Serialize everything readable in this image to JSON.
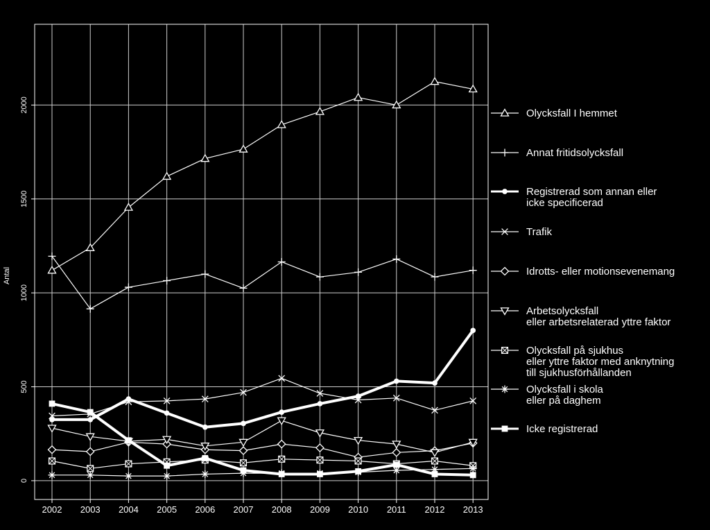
{
  "chart_data": {
    "type": "line",
    "title": "",
    "xlabel": "",
    "ylabel": "Antal",
    "x": [
      "2002",
      "2003",
      "2004",
      "2005",
      "2006",
      "2007",
      "2008",
      "2009",
      "2010",
      "2011",
      "2012",
      "2013"
    ],
    "ylim": [
      -100,
      2430
    ],
    "yticks": [
      0,
      500,
      1000,
      1500,
      2000
    ],
    "ytick_labels": [
      "0",
      "500",
      "1000",
      "1500",
      "2000"
    ],
    "grid": true,
    "legend_position": "right",
    "series": [
      {
        "name": "Olycksfall I hemmet",
        "marker": "triangle-up",
        "bold": false,
        "values": [
          1120,
          1240,
          1455,
          1620,
          1715,
          1765,
          1895,
          1965,
          2040,
          2000,
          2125,
          2085
        ]
      },
      {
        "name": "Annat fritidsolycksfall",
        "marker": "plus",
        "bold": false,
        "values": [
          1195,
          915,
          1030,
          1065,
          1100,
          1025,
          1165,
          1085,
          1110,
          1180,
          1085,
          1120
        ]
      },
      {
        "name": "Registrerad som annan eller\nicke specificerad",
        "marker": "dot",
        "bold": true,
        "values": [
          325,
          325,
          435,
          360,
          285,
          305,
          365,
          410,
          450,
          530,
          520,
          800
        ]
      },
      {
        "name": "Trafik",
        "marker": "x",
        "bold": false,
        "values": [
          345,
          355,
          420,
          425,
          435,
          470,
          545,
          465,
          430,
          440,
          375,
          425
        ]
      },
      {
        "name": "Idrotts- eller motionsevenemang",
        "marker": "diamond",
        "bold": false,
        "values": [
          165,
          155,
          205,
          195,
          165,
          160,
          195,
          175,
          125,
          150,
          160,
          200
        ]
      },
      {
        "name": "Arbetsolycksfall\neller arbetsrelaterad yttre faktor",
        "marker": "triangle-down",
        "bold": false,
        "values": [
          280,
          235,
          210,
          220,
          185,
          205,
          320,
          255,
          215,
          195,
          150,
          205
        ]
      },
      {
        "name": "Olycksfall på sjukhus\neller yttre faktor med anknytning\ntill sjukhusförhållanden",
        "marker": "boxed-square",
        "bold": false,
        "values": [
          105,
          65,
          90,
          100,
          110,
          95,
          115,
          110,
          105,
          90,
          105,
          80
        ]
      },
      {
        "name": "Olycksfall i skola\neller på daghem",
        "marker": "asterisk",
        "bold": false,
        "values": [
          30,
          30,
          25,
          25,
          35,
          40,
          40,
          40,
          45,
          55,
          60,
          65
        ]
      },
      {
        "name": "Icke registrerad",
        "marker": "square",
        "bold": true,
        "values": [
          410,
          365,
          215,
          80,
          120,
          55,
          35,
          35,
          50,
          85,
          35,
          30
        ]
      }
    ]
  }
}
